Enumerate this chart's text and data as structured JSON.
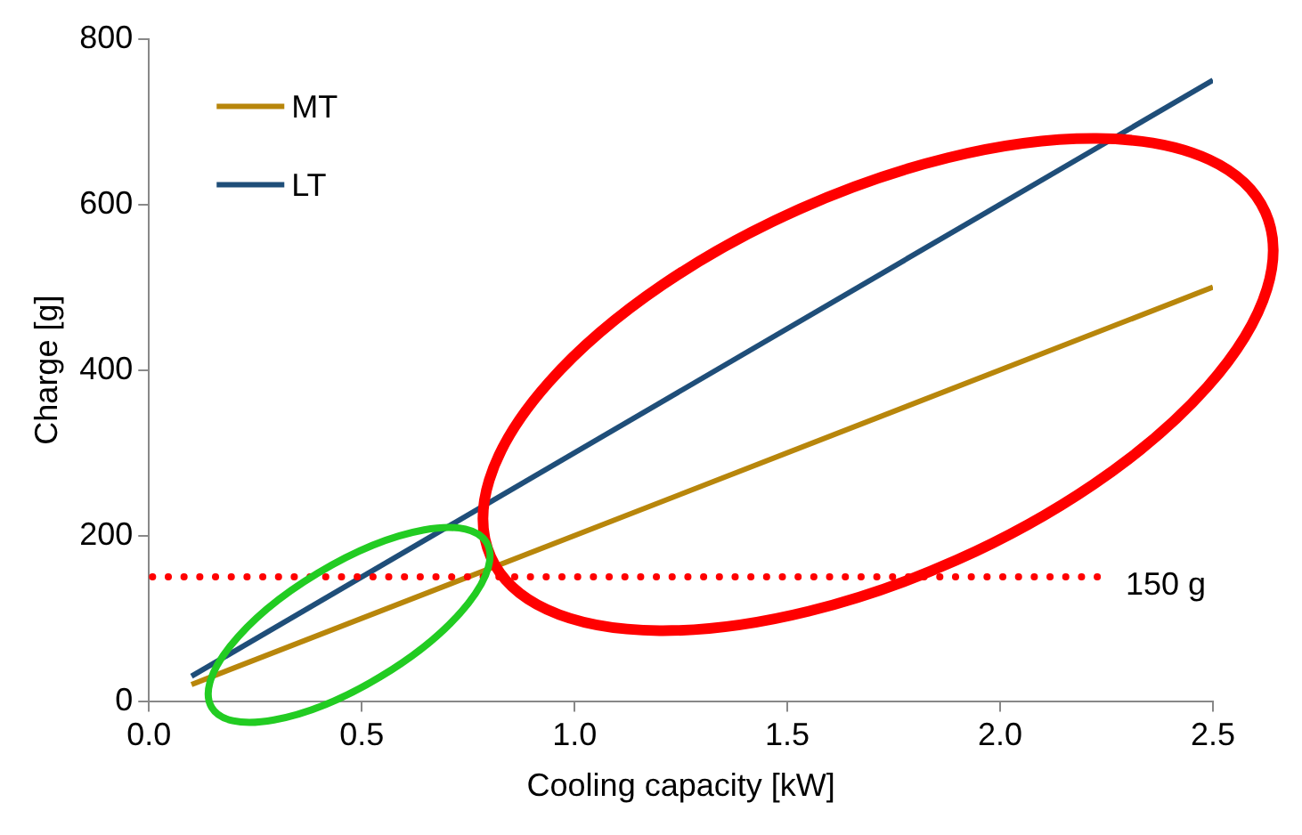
{
  "chart_data": {
    "type": "line",
    "xlabel": "Cooling capacity [kW]",
    "ylabel": "Charge [g]",
    "series": [
      {
        "name": "MT",
        "color": "#b8860b",
        "values": [
          20,
          500
        ]
      },
      {
        "name": "LT",
        "color": "#1f4e79",
        "values": [
          30,
          750
        ]
      }
    ],
    "x": [
      0.1,
      2.5
    ],
    "xlim": [
      0,
      2.5
    ],
    "xticks": [
      {
        "value": 0,
        "label": "0.0"
      },
      0.5,
      {
        "value": 1,
        "label": "1.0"
      },
      1.5,
      {
        "value": 2,
        "label": "2.0"
      },
      2.5
    ],
    "ylim": [
      0,
      800
    ],
    "yticks": [
      0,
      200,
      400,
      600,
      800
    ],
    "ref_lines": [
      {
        "axis": "y",
        "value": 150,
        "label": "150 g",
        "color": "#ff0000",
        "line_style": "dotted"
      }
    ],
    "grid": false,
    "legend": "top left",
    "marker": "none",
    "line_style": "solid"
  }
}
